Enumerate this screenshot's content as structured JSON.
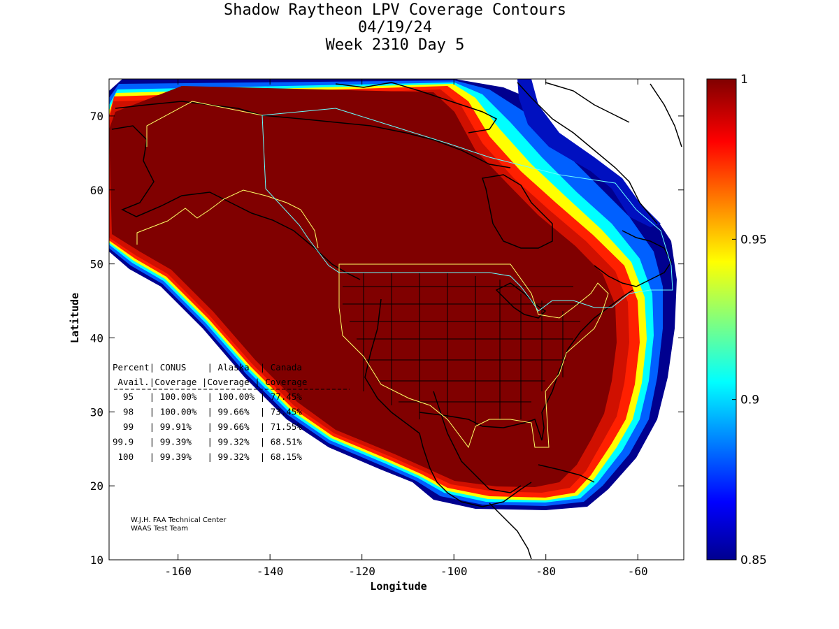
{
  "title": {
    "line1": "Shadow Raytheon LPV Coverage Contours",
    "line2": "04/19/24",
    "line3": "Week 2310 Day 5"
  },
  "axes": {
    "xlabel": "Longitude",
    "ylabel": "Latitude",
    "xlim": [
      -175,
      -50
    ],
    "ylim": [
      10,
      75
    ],
    "xticks": [
      "-160",
      "-140",
      "-120",
      "-100",
      "-80",
      "-60"
    ],
    "xtick_values": [
      -160,
      -140,
      -120,
      -100,
      -80,
      -60
    ],
    "yticks": [
      "10",
      "20",
      "30",
      "40",
      "50",
      "60",
      "70"
    ],
    "ytick_values": [
      10,
      20,
      30,
      40,
      50,
      60,
      70
    ]
  },
  "colorbar": {
    "range": [
      0.85,
      1
    ],
    "labels": [
      "1",
      "0.95",
      "0.9",
      "0.85"
    ],
    "label_values": [
      1,
      0.95,
      0.9,
      0.85
    ],
    "colormap": "jet",
    "colors": [
      "#00008f",
      "#0000ff",
      "#00ffff",
      "#ffff00",
      "#ff0000",
      "#800000"
    ]
  },
  "coverage_table": {
    "header1": [
      "Percent",
      "CONUS",
      "Alaska",
      "Canada"
    ],
    "header2": [
      "Avail.",
      "Coverage",
      "Coverage",
      "Coverage"
    ],
    "rows": [
      {
        "avail": "95",
        "conus": "100.00%",
        "alaska": "100.00%",
        "canada": "77.45%"
      },
      {
        "avail": "98",
        "conus": "100.00%",
        "alaska": "99.66%",
        "canada": "73.45%"
      },
      {
        "avail": "99",
        "conus": "99.91%",
        "alaska": "99.66%",
        "canada": "71.55%"
      },
      {
        "avail": "99.9",
        "conus": "99.39%",
        "alaska": "99.32%",
        "canada": "68.51%"
      },
      {
        "avail": "100",
        "conus": "99.39%",
        "alaska": "99.32%",
        "canada": "68.15%"
      }
    ]
  },
  "credit": {
    "line1": "W.J.H. FAA Technical Center",
    "line2": "WAAS Test Team"
  },
  "colors": {
    "full_coverage": "#800000",
    "alaska_boundary": "#ffff66",
    "canada_boundary": "#66ffff",
    "coastline": "#000000"
  }
}
